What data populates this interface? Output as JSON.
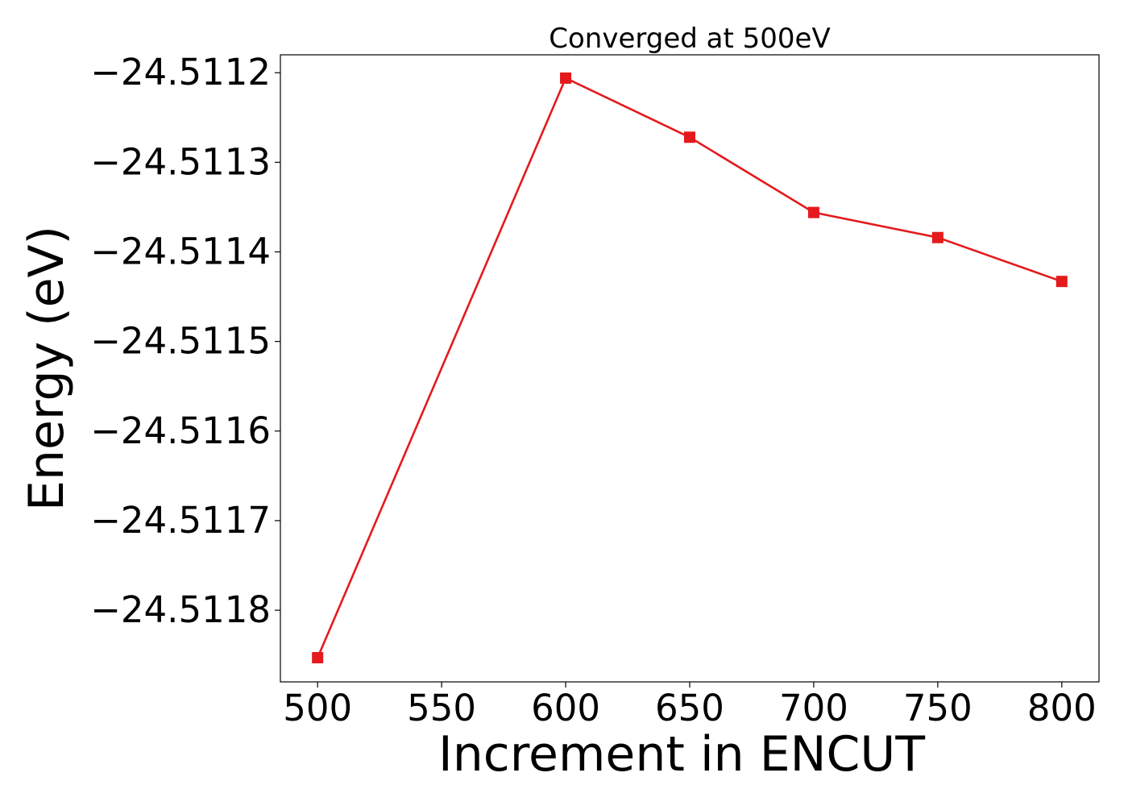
{
  "chart_data": {
    "type": "line",
    "title": "Converged at 500eV",
    "xlabel": "Increment in ENCUT",
    "ylabel": "Energy (eV)",
    "x": [
      500,
      600,
      650,
      700,
      750,
      800
    ],
    "series": [
      {
        "values": [
          -24.511853,
          -24.511206,
          -24.511272,
          -24.511356,
          -24.511384,
          -24.511433
        ],
        "color": "#e41a1c",
        "marker": "square"
      }
    ],
    "xticks": [
      500,
      550,
      600,
      650,
      700,
      750,
      800
    ],
    "xtick_labels": [
      "500",
      "550",
      "600",
      "650",
      "700",
      "750",
      "800"
    ],
    "yticks": [
      -24.5118,
      -24.5117,
      -24.5116,
      -24.5115,
      -24.5114,
      -24.5113,
      -24.5112
    ],
    "ytick_labels": [
      "−24.5118",
      "−24.5117",
      "−24.5116",
      "−24.5115",
      "−24.5114",
      "−24.5113",
      "−24.5112"
    ],
    "xlim": [
      485,
      815
    ],
    "ylim": [
      -24.51188,
      -24.51118
    ],
    "grid": false,
    "legend": false
  }
}
